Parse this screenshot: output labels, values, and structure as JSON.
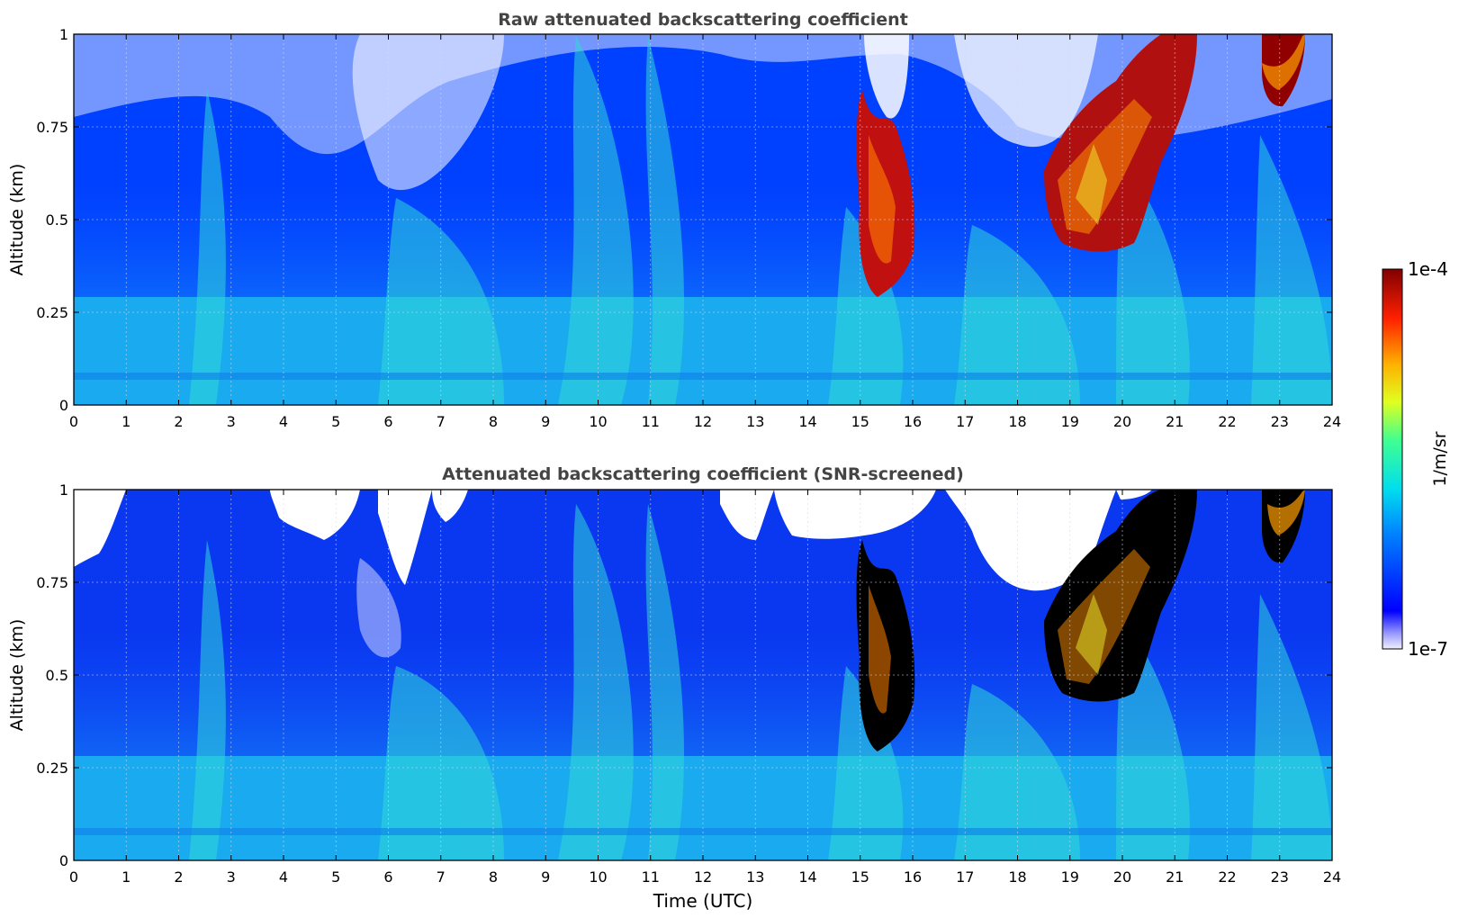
{
  "chart_data": [
    {
      "type": "heatmap",
      "title": "Raw attenuated backscattering coefficient",
      "xlabel": "",
      "ylabel": "Altitude (km)",
      "xlim": [
        0,
        24
      ],
      "ylim": [
        0,
        1
      ],
      "x_ticks": [
        "0",
        "1",
        "2",
        "3",
        "4",
        "5",
        "6",
        "7",
        "8",
        "9",
        "10",
        "11",
        "12",
        "13",
        "14",
        "15",
        "16",
        "17",
        "18",
        "19",
        "20",
        "21",
        "22",
        "23",
        "24"
      ],
      "y_ticks": [
        "0",
        "0.25",
        "0.5",
        "0.75",
        "1"
      ],
      "grid": true,
      "scale": "log",
      "features": [
        {
          "x_range": [
            15.1,
            16.1
          ],
          "y_range": [
            0.3,
            0.8
          ],
          "level": "1e-4"
        },
        {
          "x_range": [
            18.5,
            21.5
          ],
          "y_range": [
            0.4,
            1.0
          ],
          "level": "1e-4"
        },
        {
          "x_range": [
            22.7,
            23.5
          ],
          "y_range": [
            0.8,
            1.0
          ],
          "level": "1e-4"
        }
      ]
    },
    {
      "type": "heatmap",
      "title": "Attenuated backscattering coefficient (SNR-screened)",
      "xlabel": "Time (UTC)",
      "ylabel": "Altitude (km)",
      "xlim": [
        0,
        24
      ],
      "ylim": [
        0,
        1
      ],
      "x_ticks": [
        "0",
        "1",
        "2",
        "3",
        "4",
        "5",
        "6",
        "7",
        "8",
        "9",
        "10",
        "11",
        "12",
        "13",
        "14",
        "15",
        "16",
        "17",
        "18",
        "19",
        "20",
        "21",
        "22",
        "23",
        "24"
      ],
      "y_ticks": [
        "0",
        "0.25",
        "0.5",
        "0.75",
        "1"
      ],
      "grid": true,
      "scale": "log",
      "features": [
        {
          "x_range": [
            15.1,
            16.1
          ],
          "y_range": [
            0.3,
            0.8
          ],
          "level": "saturated"
        },
        {
          "x_range": [
            18.5,
            21.5
          ],
          "y_range": [
            0.4,
            1.0
          ],
          "level": "saturated"
        },
        {
          "x_range": [
            22.7,
            23.5
          ],
          "y_range": [
            0.8,
            1.0
          ],
          "level": "saturated"
        }
      ]
    }
  ],
  "colorbar": {
    "label": "1/m/sr",
    "max_label": "1e-4",
    "min_label": "1e-7",
    "scale": "log",
    "colormap": "jet"
  },
  "colors": {
    "background_sky": "#0040ff",
    "boundary_layer": "#1fb0ee",
    "aerosol": "#30e0d0",
    "cloud": "#a00000",
    "masked": "#ffffff",
    "saturated": "#000000"
  }
}
